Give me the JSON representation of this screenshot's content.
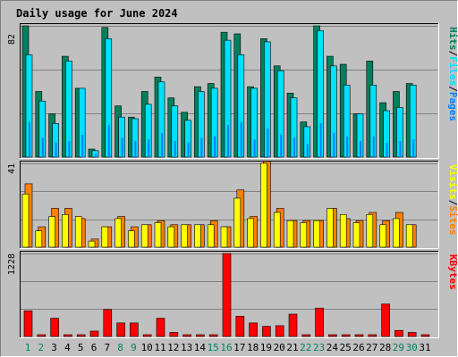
{
  "title": "Daily usage for June 2024",
  "colors": {
    "background": "#c0c0c0",
    "title": "#0000ff",
    "grid": "#808080",
    "hits": "#00805c",
    "files": "#00e0ff",
    "pages": "#0080ff",
    "visits": "#ffff00",
    "sites": "#ff8000",
    "kbytes": "#ff0000",
    "weekend_label": "#00805c",
    "weekday_label": "#000000"
  },
  "chart_data": [
    {
      "type": "bar",
      "panel": "top",
      "title": "",
      "axis_max_label": "82",
      "ylim": [
        0,
        82
      ],
      "legend": [
        {
          "name": "Pages",
          "key": "pages"
        },
        {
          "name": "Files",
          "key": "files"
        },
        {
          "name": "Hits",
          "key": "hits"
        }
      ],
      "categories": [
        "1",
        "2",
        "3",
        "4",
        "5",
        "6",
        "7",
        "8",
        "9",
        "10",
        "11",
        "12",
        "13",
        "14",
        "15",
        "16",
        "17",
        "18",
        "19",
        "20",
        "21",
        "22",
        "23",
        "24",
        "25",
        "26",
        "27",
        "28",
        "29",
        "30",
        "31"
      ],
      "weekend_days": [
        "1",
        "2",
        "8",
        "9",
        "15",
        "16",
        "22",
        "23",
        "29",
        "30"
      ],
      "series": [
        {
          "name": "Hits",
          "key": "hits",
          "values": [
            82,
            41,
            27,
            63,
            43,
            5,
            81,
            32,
            25,
            41,
            50,
            37,
            28,
            44,
            46,
            78,
            77,
            44,
            74,
            57,
            40,
            22,
            82,
            63,
            58,
            27,
            60,
            34,
            41,
            46,
            0
          ]
        },
        {
          "name": "Files",
          "key": "files",
          "values": [
            64,
            35,
            21,
            60,
            43,
            4,
            74,
            25,
            24,
            33,
            47,
            32,
            23,
            41,
            43,
            73,
            64,
            43,
            72,
            54,
            37,
            19,
            79,
            57,
            45,
            27,
            45,
            29,
            31,
            45,
            0
          ]
        },
        {
          "name": "Pages",
          "key": "pages",
          "values": [
            22,
            12,
            9,
            10,
            14,
            2,
            20,
            12,
            10,
            11,
            15,
            10,
            9,
            12,
            13,
            20,
            22,
            11,
            18,
            14,
            12,
            8,
            21,
            15,
            13,
            10,
            13,
            9,
            10,
            11,
            0
          ]
        }
      ]
    },
    {
      "type": "bar",
      "panel": "middle",
      "title": "",
      "axis_max_label": "41",
      "ylim": [
        0,
        41
      ],
      "legend": [
        {
          "name": "Sites",
          "key": "sites"
        },
        {
          "name": "Visits",
          "key": "visits"
        }
      ],
      "categories": [
        "1",
        "2",
        "3",
        "4",
        "5",
        "6",
        "7",
        "8",
        "9",
        "10",
        "11",
        "12",
        "13",
        "14",
        "15",
        "16",
        "17",
        "18",
        "19",
        "20",
        "21",
        "22",
        "23",
        "24",
        "25",
        "26",
        "27",
        "28",
        "29",
        "30",
        "31"
      ],
      "series": [
        {
          "name": "Visits",
          "key": "visits",
          "values": [
            26,
            8,
            15,
            16,
            15,
            3,
            10,
            14,
            8,
            11,
            12,
            10,
            11,
            11,
            11,
            10,
            24,
            14,
            41,
            17,
            13,
            12,
            13,
            19,
            16,
            12,
            16,
            11,
            14,
            11,
            0
          ]
        },
        {
          "name": "Sites",
          "key": "sites",
          "values": [
            31,
            10,
            19,
            19,
            14,
            4,
            10,
            15,
            10,
            11,
            13,
            11,
            11,
            11,
            13,
            10,
            28,
            15,
            42,
            19,
            13,
            13,
            13,
            19,
            14,
            13,
            17,
            13,
            17,
            11,
            0
          ]
        }
      ]
    },
    {
      "type": "bar",
      "panel": "bottom",
      "title": "",
      "axis_max_label": "1228",
      "ylim": [
        0,
        1228
      ],
      "legend": [
        {
          "name": "KBytes",
          "key": "kbytes"
        }
      ],
      "categories": [
        "1",
        "2",
        "3",
        "4",
        "5",
        "6",
        "7",
        "8",
        "9",
        "10",
        "11",
        "12",
        "13",
        "14",
        "15",
        "16",
        "17",
        "18",
        "19",
        "20",
        "21",
        "22",
        "23",
        "24",
        "25",
        "26",
        "27",
        "28",
        "29",
        "30",
        "31"
      ],
      "series": [
        {
          "name": "KBytes",
          "key": "kbytes",
          "values": [
            380,
            20,
            270,
            20,
            20,
            80,
            400,
            200,
            200,
            20,
            270,
            60,
            20,
            20,
            20,
            1228,
            300,
            200,
            150,
            160,
            330,
            20,
            420,
            20,
            20,
            20,
            20,
            480,
            90,
            60,
            20
          ]
        }
      ]
    }
  ]
}
